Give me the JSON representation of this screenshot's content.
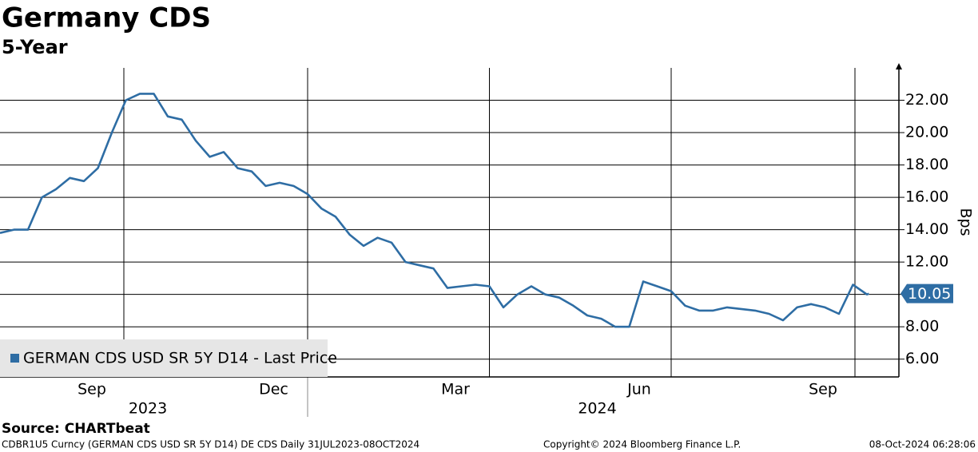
{
  "chart_data": {
    "type": "line",
    "title": "Germany CDS",
    "subtitle": "5-Year",
    "y_label": "Bps",
    "source": "Source: CHARTbeat",
    "footer_left": "CDBR1U5 Curncy (GERMAN CDS USD SR 5Y D14) DE CDS  Daily 31JUL2023-08OCT2024",
    "footer_center": "Copyright© 2024 Bloomberg Finance L.P.",
    "footer_right": "08-Oct-2024 06:28:06",
    "x": [
      "2023-07-31",
      "2023-08-07",
      "2023-08-14",
      "2023-08-21",
      "2023-08-28",
      "2023-09-04",
      "2023-09-11",
      "2023-09-18",
      "2023-09-25",
      "2023-10-02",
      "2023-10-09",
      "2023-10-16",
      "2023-10-23",
      "2023-10-30",
      "2023-11-06",
      "2023-11-13",
      "2023-11-20",
      "2023-11-27",
      "2023-12-04",
      "2023-12-11",
      "2023-12-18",
      "2023-12-25",
      "2024-01-01",
      "2024-01-08",
      "2024-01-15",
      "2024-01-22",
      "2024-01-29",
      "2024-02-05",
      "2024-02-12",
      "2024-02-19",
      "2024-02-26",
      "2024-03-04",
      "2024-03-11",
      "2024-03-18",
      "2024-03-25",
      "2024-04-01",
      "2024-04-08",
      "2024-04-15",
      "2024-04-22",
      "2024-04-29",
      "2024-05-06",
      "2024-05-13",
      "2024-05-20",
      "2024-05-27",
      "2024-06-03",
      "2024-06-10",
      "2024-06-17",
      "2024-06-24",
      "2024-07-01",
      "2024-07-08",
      "2024-07-15",
      "2024-07-22",
      "2024-07-29",
      "2024-08-05",
      "2024-08-12",
      "2024-08-19",
      "2024-08-26",
      "2024-09-02",
      "2024-09-09",
      "2024-09-16",
      "2024-09-23",
      "2024-09-30",
      "2024-10-07",
      "2024-10-08"
    ],
    "series": [
      {
        "name": "GERMAN CDS USD SR 5Y D14 - Last Price",
        "color": "#2e6da4",
        "values": [
          13.8,
          14.0,
          14.0,
          16.0,
          16.5,
          17.2,
          17.0,
          17.8,
          20.0,
          22.0,
          22.4,
          22.4,
          21.0,
          20.8,
          19.5,
          18.5,
          18.8,
          17.8,
          17.6,
          16.7,
          16.9,
          16.7,
          16.2,
          15.3,
          14.8,
          13.7,
          13.0,
          13.5,
          13.2,
          12.0,
          11.8,
          11.6,
          10.4,
          10.5,
          10.6,
          10.5,
          9.2,
          10.0,
          10.5,
          10.0,
          9.8,
          9.3,
          8.7,
          8.5,
          8.0,
          8.0,
          10.8,
          10.5,
          10.2,
          9.3,
          9.0,
          9.0,
          9.2,
          9.1,
          9.0,
          8.8,
          8.4,
          9.2,
          9.4,
          9.2,
          8.8,
          10.6,
          10.0,
          10.05
        ]
      }
    ],
    "xlim": [
      "2023-07-31",
      "2024-10-23"
    ],
    "xticks": [
      {
        "value": "2023-09-15",
        "label": "Sep"
      },
      {
        "value": "2023-12-15",
        "label": "Dec"
      },
      {
        "value": "2024-03-15",
        "label": "Mar"
      },
      {
        "value": "2024-06-15",
        "label": "Jun"
      },
      {
        "value": "2024-09-15",
        "label": "Sep"
      }
    ],
    "xgrid": [
      "2023-10-01",
      "2024-01-01",
      "2024-04-01",
      "2024-07-01",
      "2024-10-01"
    ],
    "year_ticks": [
      {
        "value": "2023-10-13",
        "label": "2023"
      },
      {
        "value": "2024-05-25",
        "label": "2024"
      }
    ],
    "year_separators": [
      "2024-01-01"
    ],
    "ylim": [
      4.9,
      24
    ],
    "yticks": [
      {
        "value": 6,
        "label": "6.00"
      },
      {
        "value": 8,
        "label": "8.00"
      },
      {
        "value": 10,
        "label": "10.00"
      },
      {
        "value": 12,
        "label": "12.00"
      },
      {
        "value": 14,
        "label": "14.00"
      },
      {
        "value": 16,
        "label": "16.00"
      },
      {
        "value": 18,
        "label": "18.00"
      },
      {
        "value": 20,
        "label": "20.00"
      },
      {
        "value": 22,
        "label": "22.00"
      }
    ],
    "grid": true,
    "legend": "lower-left"
  }
}
